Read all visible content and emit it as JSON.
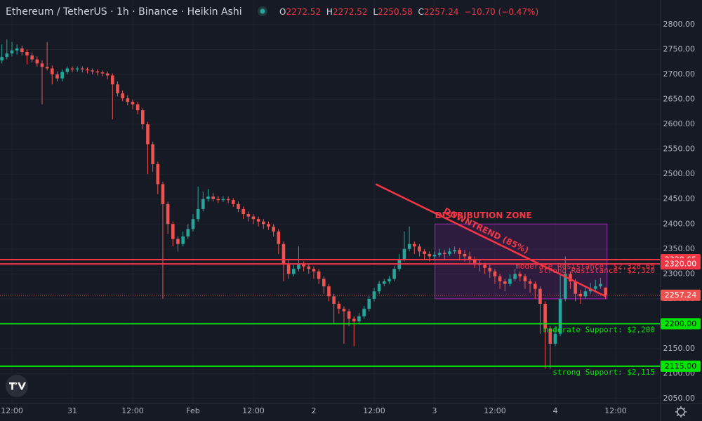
{
  "chart_data": {
    "type": "candlestick",
    "title": "Ethereum / TetherUS · 1h · Binance · Heikin Ashi",
    "ohlc_labels": [
      "O",
      "H",
      "L",
      "C"
    ],
    "change": {
      "value": -10.7,
      "label": "−10.70 (−0.47%)"
    },
    "up_color": "#26a69a",
    "down_color": "#ef5350",
    "ylim": [
      2040.2,
      2849.2
    ],
    "yticks": [
      {
        "value": 2050,
        "label": "2050.00"
      },
      {
        "value": 2100,
        "label": "2100.00"
      },
      {
        "value": 2150,
        "label": "2150.00"
      },
      {
        "value": 2200,
        "label": "2200.00"
      },
      {
        "value": 2250,
        "label": "2250.00"
      },
      {
        "value": 2300,
        "label": "2300.00"
      },
      {
        "value": 2350,
        "label": "2350.00"
      },
      {
        "value": 2400,
        "label": "2400.00"
      },
      {
        "value": 2450,
        "label": "2450.00"
      },
      {
        "value": 2500,
        "label": "2500.00"
      },
      {
        "value": 2550,
        "label": "2550.00"
      },
      {
        "value": 2600,
        "label": "2600.00"
      },
      {
        "value": 2650,
        "label": "2650.00"
      },
      {
        "value": 2700,
        "label": "2700.00"
      },
      {
        "value": 2750,
        "label": "2750.00"
      },
      {
        "value": 2800,
        "label": "2800.00"
      }
    ],
    "xlim": [
      -0.37,
      130.8
    ],
    "xticks": [
      {
        "value": 2,
        "label": "12:00"
      },
      {
        "value": 14,
        "label": "31"
      },
      {
        "value": 26,
        "label": "12:00"
      },
      {
        "value": 38,
        "label": "Feb"
      },
      {
        "value": 50,
        "label": "12:00"
      },
      {
        "value": 62,
        "label": "2"
      },
      {
        "value": 74,
        "label": "12:00"
      },
      {
        "value": 86,
        "label": "3"
      },
      {
        "value": 98,
        "label": "12:00"
      },
      {
        "value": 110,
        "label": "4"
      },
      {
        "value": 122,
        "label": "12:00"
      }
    ],
    "grid": true,
    "ohlc": [
      [
        2728,
        2760,
        2722,
        2735
      ],
      [
        2735,
        2770,
        2730,
        2742
      ],
      [
        2742,
        2765,
        2736,
        2748
      ],
      [
        2748,
        2760,
        2740,
        2752
      ],
      [
        2752,
        2758,
        2738,
        2745
      ],
      [
        2745,
        2750,
        2720,
        2738
      ],
      [
        2738,
        2744,
        2724,
        2730
      ],
      [
        2730,
        2736,
        2716,
        2722
      ],
      [
        2722,
        2728,
        2640,
        2715
      ],
      [
        2715,
        2765,
        2708,
        2712
      ],
      [
        2712,
        2718,
        2680,
        2700
      ],
      [
        2700,
        2706,
        2686,
        2692
      ],
      [
        2692,
        2710,
        2686,
        2705
      ],
      [
        2705,
        2716,
        2700,
        2712
      ],
      [
        2712,
        2716,
        2704,
        2710
      ],
      [
        2710,
        2716,
        2705,
        2712
      ],
      [
        2712,
        2716,
        2704,
        2710
      ],
      [
        2710,
        2714,
        2702,
        2708
      ],
      [
        2708,
        2712,
        2700,
        2706
      ],
      [
        2706,
        2710,
        2698,
        2704
      ],
      [
        2704,
        2708,
        2696,
        2702
      ],
      [
        2702,
        2706,
        2690,
        2698
      ],
      [
        2698,
        2702,
        2610,
        2680
      ],
      [
        2680,
        2686,
        2656,
        2662
      ],
      [
        2662,
        2668,
        2646,
        2652
      ],
      [
        2652,
        2658,
        2638,
        2645
      ],
      [
        2645,
        2650,
        2630,
        2640
      ],
      [
        2640,
        2645,
        2620,
        2628
      ],
      [
        2628,
        2632,
        2590,
        2600
      ],
      [
        2600,
        2605,
        2500,
        2560
      ],
      [
        2560,
        2565,
        2505,
        2520
      ],
      [
        2520,
        2525,
        2460,
        2480
      ],
      [
        2480,
        2485,
        2250,
        2440
      ],
      [
        2440,
        2445,
        2380,
        2400
      ],
      [
        2400,
        2405,
        2355,
        2370
      ],
      [
        2370,
        2375,
        2345,
        2360
      ],
      [
        2360,
        2385,
        2355,
        2375
      ],
      [
        2375,
        2400,
        2370,
        2390
      ],
      [
        2390,
        2420,
        2385,
        2410
      ],
      [
        2410,
        2475,
        2405,
        2430
      ],
      [
        2430,
        2465,
        2425,
        2450
      ],
      [
        2450,
        2470,
        2445,
        2455
      ],
      [
        2455,
        2462,
        2445,
        2450
      ],
      [
        2450,
        2456,
        2442,
        2448
      ],
      [
        2448,
        2456,
        2444,
        2450
      ],
      [
        2450,
        2455,
        2442,
        2448
      ],
      [
        2448,
        2452,
        2434,
        2440
      ],
      [
        2440,
        2445,
        2424,
        2430
      ],
      [
        2430,
        2435,
        2410,
        2420
      ],
      [
        2420,
        2425,
        2405,
        2415
      ],
      [
        2415,
        2420,
        2400,
        2410
      ],
      [
        2410,
        2415,
        2395,
        2405
      ],
      [
        2405,
        2410,
        2390,
        2400
      ],
      [
        2400,
        2405,
        2388,
        2395
      ],
      [
        2395,
        2400,
        2375,
        2385
      ],
      [
        2385,
        2390,
        2340,
        2360
      ],
      [
        2360,
        2365,
        2285,
        2320
      ],
      [
        2320,
        2330,
        2290,
        2300
      ],
      [
        2300,
        2318,
        2295,
        2310
      ],
      [
        2310,
        2355,
        2305,
        2320
      ],
      [
        2320,
        2325,
        2305,
        2315
      ],
      [
        2315,
        2320,
        2300,
        2310
      ],
      [
        2310,
        2315,
        2290,
        2305
      ],
      [
        2305,
        2310,
        2280,
        2290
      ],
      [
        2290,
        2295,
        2260,
        2275
      ],
      [
        2275,
        2280,
        2245,
        2255
      ],
      [
        2255,
        2260,
        2200,
        2240
      ],
      [
        2240,
        2245,
        2220,
        2230
      ],
      [
        2230,
        2235,
        2160,
        2225
      ],
      [
        2225,
        2230,
        2195,
        2210
      ],
      [
        2210,
        2215,
        2155,
        2205
      ],
      [
        2205,
        2222,
        2200,
        2215
      ],
      [
        2215,
        2236,
        2210,
        2230
      ],
      [
        2230,
        2256,
        2225,
        2250
      ],
      [
        2250,
        2272,
        2245,
        2265
      ],
      [
        2265,
        2286,
        2260,
        2280
      ],
      [
        2280,
        2290,
        2275,
        2285
      ],
      [
        2285,
        2296,
        2280,
        2290
      ],
      [
        2290,
        2316,
        2285,
        2310
      ],
      [
        2310,
        2340,
        2305,
        2330
      ],
      [
        2330,
        2385,
        2325,
        2350
      ],
      [
        2350,
        2395,
        2345,
        2360
      ],
      [
        2360,
        2365,
        2340,
        2355
      ],
      [
        2355,
        2360,
        2335,
        2345
      ],
      [
        2345,
        2350,
        2330,
        2340
      ],
      [
        2340,
        2345,
        2325,
        2335
      ],
      [
        2335,
        2345,
        2330,
        2338
      ],
      [
        2338,
        2350,
        2334,
        2342
      ],
      [
        2342,
        2348,
        2330,
        2340
      ],
      [
        2340,
        2352,
        2336,
        2345
      ],
      [
        2345,
        2355,
        2340,
        2348
      ],
      [
        2348,
        2352,
        2330,
        2340
      ],
      [
        2340,
        2348,
        2325,
        2335
      ],
      [
        2335,
        2345,
        2320,
        2330
      ],
      [
        2330,
        2335,
        2312,
        2322
      ],
      [
        2322,
        2328,
        2305,
        2318
      ],
      [
        2318,
        2322,
        2300,
        2312
      ],
      [
        2312,
        2318,
        2292,
        2305
      ],
      [
        2305,
        2310,
        2280,
        2295
      ],
      [
        2295,
        2300,
        2270,
        2285
      ],
      [
        2285,
        2290,
        2265,
        2280
      ],
      [
        2280,
        2300,
        2275,
        2290
      ],
      [
        2290,
        2310,
        2285,
        2300
      ],
      [
        2300,
        2305,
        2285,
        2295
      ],
      [
        2295,
        2300,
        2270,
        2285
      ],
      [
        2285,
        2290,
        2262,
        2280
      ],
      [
        2280,
        2285,
        2250,
        2270
      ],
      [
        2270,
        2275,
        2180,
        2240
      ],
      [
        2240,
        2245,
        2110,
        2190
      ],
      [
        2190,
        2195,
        2110,
        2160
      ],
      [
        2160,
        2195,
        2155,
        2180
      ],
      [
        2180,
        2300,
        2175,
        2250
      ],
      [
        2250,
        2335,
        2245,
        2300
      ],
      [
        2300,
        2305,
        2270,
        2285
      ],
      [
        2285,
        2290,
        2245,
        2260
      ],
      [
        2260,
        2268,
        2240,
        2255
      ],
      [
        2255,
        2275,
        2250,
        2265
      ],
      [
        2265,
        2282,
        2260,
        2270
      ],
      [
        2270,
        2288,
        2265,
        2275
      ],
      [
        2275,
        2292,
        2270,
        2280
      ],
      [
        2272.52,
        2272.52,
        2250.58,
        2257.24
      ]
    ],
    "levels": [
      {
        "value": 2328.65,
        "label": "2328.65",
        "color": "#f23645",
        "note": "moderate Resistance: $2,328.65"
      },
      {
        "value": 2320,
        "label": "2320.00",
        "color": "#f23645",
        "note": "strong Resistance: $2,320"
      },
      {
        "value": 2200,
        "label": "2200.00",
        "color": "#00e600",
        "note": "moderate Support: $2,200"
      },
      {
        "value": 2115,
        "label": "2115.00",
        "color": "#00e600",
        "note": "strong Support: $2,115"
      }
    ],
    "last_price": {
      "value": 2257.24,
      "label": "2257.24",
      "color": "#ef5350"
    },
    "zone": {
      "label": "DISTRIBUTION ZONE",
      "x": [
        86.1,
        120.3
      ],
      "y": [
        2250,
        2400
      ],
      "color": "#9c27b0"
    },
    "trend": {
      "label": "DOWNTREND (85%)",
      "x": [
        74.3,
        120
      ],
      "y": [
        2480,
        2255
      ],
      "color": "#f23645"
    }
  }
}
